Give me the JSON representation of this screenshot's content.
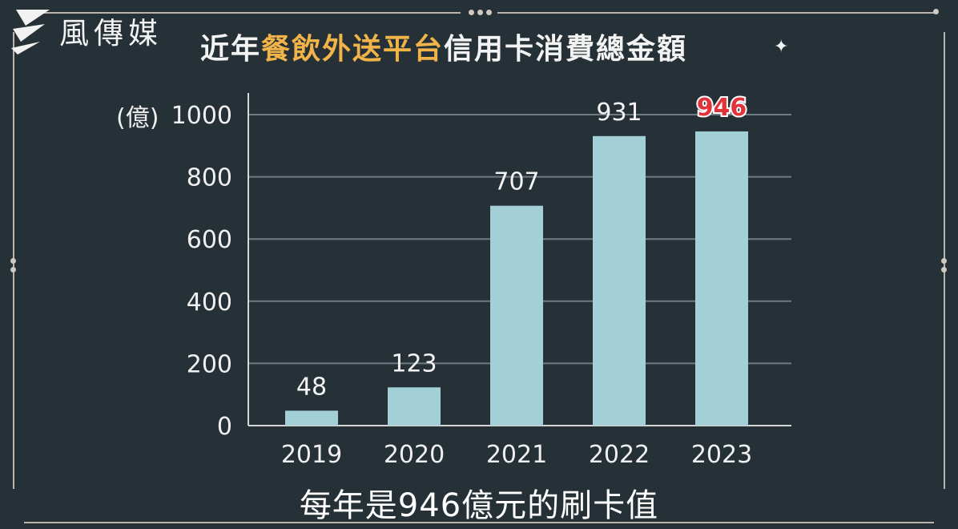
{
  "brand": {
    "name": "風傳媒",
    "logo_icon": "storm-media-logo"
  },
  "header": {
    "title_prefix": "近年",
    "title_highlight": "餐飲外送平台",
    "title_suffix": "信用卡消費總金額",
    "sparkle_icon": "sparkle-icon"
  },
  "caption": "每年是946億元的刷卡值",
  "colors": {
    "background": "#253136",
    "bar": "#a3cfd6",
    "highlight_text": "#f2b349",
    "highlight_value": "#e0333a",
    "grid": "#6f7b80"
  },
  "chart_data": {
    "type": "bar",
    "title": "近年餐飲外送平台信用卡消費總金額",
    "ylabel": "(億)",
    "categories": [
      "2019",
      "2020",
      "2021",
      "2022",
      "2023"
    ],
    "values": [
      48,
      123,
      707,
      931,
      946
    ],
    "value_labels": [
      "48",
      "123",
      "707",
      "931",
      "946"
    ],
    "highlight_index": 4,
    "yticks": [
      "0",
      "200",
      "400",
      "600",
      "800",
      "1000"
    ],
    "ytick_values": [
      0,
      200,
      400,
      600,
      800,
      1000
    ],
    "ylim": [
      0,
      1000
    ],
    "grid": true
  }
}
